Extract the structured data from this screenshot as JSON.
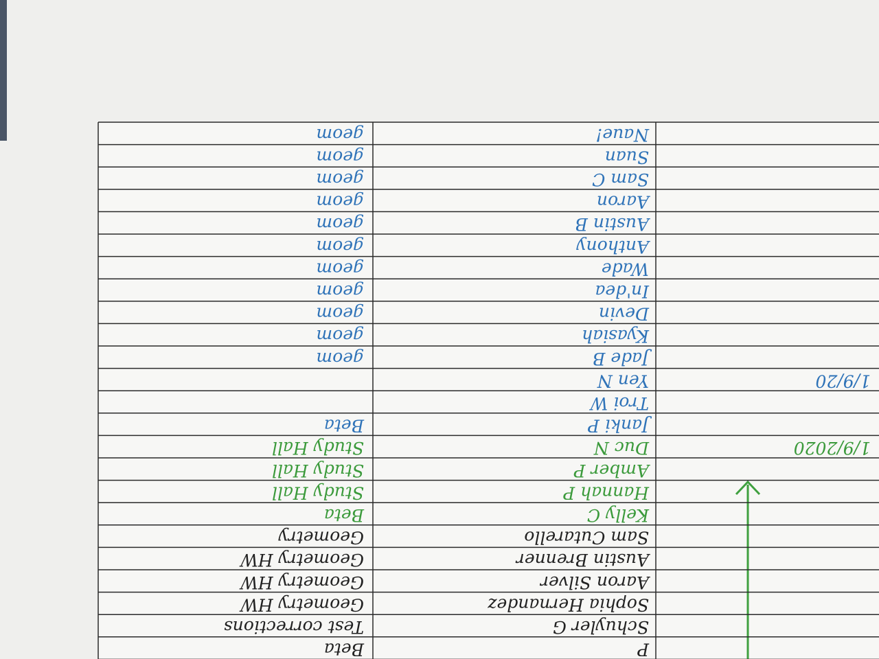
{
  "sheet": {
    "rows": [
      {
        "name": "Naue!",
        "activity": "geom",
        "ink": "#2f73b8"
      },
      {
        "name": "Suan",
        "activity": "geom",
        "ink": "#2f73b8"
      },
      {
        "name": "Sam C",
        "activity": "geom",
        "ink": "#2f73b8"
      },
      {
        "name": "Aaron",
        "activity": "geom",
        "ink": "#2f73b8"
      },
      {
        "name": "Austin B",
        "activity": "geom",
        "ink": "#2f73b8"
      },
      {
        "name": "Anthony",
        "activity": "geom",
        "ink": "#2f73b8"
      },
      {
        "name": "Wade",
        "activity": "geom",
        "ink": "#2f73b8"
      },
      {
        "name": "In'dea",
        "activity": "geom",
        "ink": "#2f73b8"
      },
      {
        "name": "Devin",
        "activity": "geom",
        "ink": "#2f73b8"
      },
      {
        "name": "Kyasiah",
        "activity": "geom",
        "ink": "#2f73b8"
      },
      {
        "name": "Jade B",
        "activity": "geom",
        "ink": "#2f73b8"
      },
      {
        "name": "Yen N",
        "date": "1/9/20",
        "ink": "#2f73b8"
      },
      {
        "name": "Troi W",
        "ink": "#2f73b8"
      },
      {
        "name": "Janki P",
        "activity": "Beta",
        "ink": "#2f73b8"
      },
      {
        "name": "Duc N",
        "activity": "Study Hall",
        "date": "1/9/2020",
        "ink": "#3b9a3b"
      },
      {
        "name": "Amber P",
        "activity": "Study Hall",
        "ink": "#3b9a3b"
      },
      {
        "name": "Hannah P",
        "activity": "Study Hall",
        "ink": "#3b9a3b"
      },
      {
        "name": "Kelly C",
        "activity": "Beta",
        "ink": "#3b9a3b"
      },
      {
        "name": "Sam Cutarello",
        "activity": "Geometry",
        "ink": "#222222"
      },
      {
        "name": "Austin Brenner",
        "activity": "Geometry HW",
        "ink": "#222222"
      },
      {
        "name": "Aaron Silver",
        "activity": "Geometry HW",
        "ink": "#222222"
      },
      {
        "name": "Sophia Hernandez",
        "activity": "Geometry HW",
        "ink": "#222222"
      },
      {
        "name": "Schuyler G",
        "activity": "Test corrections",
        "ink": "#222222"
      },
      {
        "name": "P",
        "activity": "Beta",
        "ink": "#222222"
      }
    ]
  }
}
